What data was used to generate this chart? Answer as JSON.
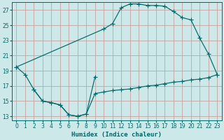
{
  "xlabel": "Humidex (Indice chaleur)",
  "bg_color": "#cce8e8",
  "grid_color": "#c8a0a0",
  "line_color": "#006868",
  "xlim": [
    -0.5,
    23.5
  ],
  "ylim": [
    12.5,
    28.0
  ],
  "yticks": [
    13,
    15,
    17,
    19,
    21,
    23,
    25,
    27
  ],
  "xticks": [
    0,
    1,
    2,
    3,
    4,
    5,
    6,
    7,
    8,
    9,
    10,
    11,
    12,
    13,
    14,
    15,
    16,
    17,
    18,
    19,
    20,
    21,
    22,
    23
  ],
  "upper_x": [
    0,
    10,
    11,
    12,
    13,
    14,
    15,
    16,
    17,
    18,
    19,
    20,
    21,
    22,
    23
  ],
  "upper_y": [
    19.5,
    24.5,
    25.2,
    27.3,
    27.8,
    27.8,
    27.6,
    27.6,
    27.5,
    26.8,
    26.0,
    25.7,
    23.3,
    21.2,
    18.5
  ],
  "lower_x": [
    0,
    1,
    2,
    3,
    4,
    5,
    6,
    7,
    8,
    9
  ],
  "lower_y": [
    19.5,
    18.5,
    16.5,
    15.0,
    14.8,
    14.5,
    13.2,
    13.0,
    13.3,
    18.2
  ],
  "flat_x": [
    2,
    3,
    4,
    5,
    6,
    7,
    8,
    9,
    10,
    11,
    12,
    13,
    14,
    15,
    16,
    17,
    18,
    19,
    20,
    21,
    22,
    23
  ],
  "flat_y": [
    16.5,
    15.0,
    14.8,
    14.5,
    13.2,
    13.0,
    13.3,
    16.0,
    16.2,
    16.4,
    16.5,
    16.6,
    16.8,
    17.0,
    17.1,
    17.3,
    17.5,
    17.6,
    17.8,
    17.9,
    18.1,
    18.5
  ]
}
